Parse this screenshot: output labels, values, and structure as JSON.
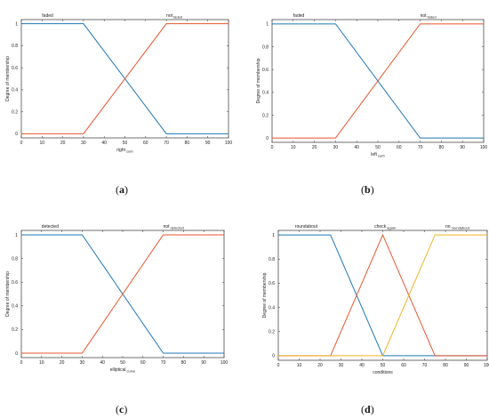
{
  "chart_data": [
    {
      "id": "a",
      "type": "line",
      "caption_letter": "a",
      "ylabel": "Degree of membership",
      "xlabel": "right",
      "xlabel_sub": "curb",
      "x_ticks": [
        0,
        10,
        20,
        30,
        40,
        50,
        60,
        70,
        80,
        90,
        100
      ],
      "y_ticks": [
        0,
        0.2,
        0.4,
        0.6,
        0.8,
        1
      ],
      "xlim": [
        0,
        100
      ],
      "ylim": [
        0,
        1
      ],
      "series": [
        {
          "name": "faded",
          "color": "#1f77b4",
          "x": [
            0,
            30,
            70,
            100
          ],
          "y": [
            1,
            1,
            0,
            0
          ]
        },
        {
          "name": "not_faded",
          "color": "#e6552b",
          "x": [
            0,
            30,
            70,
            100
          ],
          "y": [
            0,
            0,
            1,
            1
          ]
        }
      ],
      "legend_texts": [
        {
          "text": "faded",
          "sub": "",
          "x": 10
        },
        {
          "text": "not",
          "sub": "faded",
          "x": 70
        }
      ]
    },
    {
      "id": "b",
      "type": "line",
      "caption_letter": "b",
      "ylabel": "Degree of membership",
      "xlabel": "left",
      "xlabel_sub": "curb",
      "x_ticks": [
        0,
        10,
        20,
        30,
        40,
        50,
        60,
        70,
        80,
        90,
        100
      ],
      "y_ticks": [
        0,
        0.2,
        0.4,
        0.6,
        0.8,
        1
      ],
      "xlim": [
        0,
        100
      ],
      "ylim": [
        0,
        1
      ],
      "series": [
        {
          "name": "faded",
          "color": "#1f77b4",
          "x": [
            0,
            30,
            70,
            100
          ],
          "y": [
            1,
            1,
            0,
            0
          ]
        },
        {
          "name": "not_faded",
          "color": "#e6552b",
          "x": [
            0,
            30,
            70,
            100
          ],
          "y": [
            0,
            0,
            1,
            1
          ]
        }
      ],
      "legend_texts": [
        {
          "text": "faded",
          "sub": "",
          "x": 10
        },
        {
          "text": "not",
          "sub": "faded",
          "x": 70
        }
      ]
    },
    {
      "id": "c",
      "type": "line",
      "caption_letter": "c",
      "ylabel": "Degree of membership",
      "xlabel": "elliptical",
      "xlabel_sub": "curve",
      "x_ticks": [
        0,
        10,
        20,
        30,
        40,
        50,
        60,
        70,
        80,
        90,
        100
      ],
      "y_ticks": [
        0,
        0.2,
        0.4,
        0.6,
        0.8,
        1
      ],
      "xlim": [
        0,
        100
      ],
      "ylim": [
        0,
        1
      ],
      "series": [
        {
          "name": "detected",
          "color": "#1f77b4",
          "x": [
            0,
            30,
            70,
            100
          ],
          "y": [
            1,
            1,
            0,
            0
          ]
        },
        {
          "name": "not_detected",
          "color": "#e6552b",
          "x": [
            0,
            30,
            70,
            100
          ],
          "y": [
            0,
            0,
            1,
            1
          ]
        }
      ],
      "legend_texts": [
        {
          "text": "detected",
          "sub": "",
          "x": 10
        },
        {
          "text": "not",
          "sub": "detected",
          "x": 70
        }
      ]
    },
    {
      "id": "d",
      "type": "line",
      "caption_letter": "d",
      "ylabel": "Degree of membership",
      "xlabel": "conditions",
      "xlabel_sub": "",
      "x_ticks": [
        0,
        10,
        20,
        30,
        40,
        50,
        60,
        70,
        80,
        90,
        100
      ],
      "y_ticks": [
        0,
        0.2,
        0.4,
        0.6,
        0.8,
        1
      ],
      "xlim": [
        0,
        100
      ],
      "ylim": [
        0,
        1
      ],
      "series": [
        {
          "name": "roundabout",
          "color": "#1f77b4",
          "x": [
            0,
            25,
            50,
            100
          ],
          "y": [
            1,
            1,
            0,
            0
          ]
        },
        {
          "name": "check_again",
          "color": "#e6552b",
          "x": [
            0,
            25,
            50,
            75,
            100
          ],
          "y": [
            0,
            0,
            1,
            0,
            0
          ]
        },
        {
          "name": "no_roundabout",
          "color": "#f0b323",
          "x": [
            0,
            50,
            75,
            100
          ],
          "y": [
            0,
            0,
            1,
            1
          ]
        }
      ],
      "legend_texts": [
        {
          "text": "roundabout",
          "sub": "",
          "x": 8
        },
        {
          "text": "check",
          "sub": "again",
          "x": 46
        },
        {
          "text": "no",
          "sub": "roundabout",
          "x": 80
        }
      ]
    }
  ]
}
